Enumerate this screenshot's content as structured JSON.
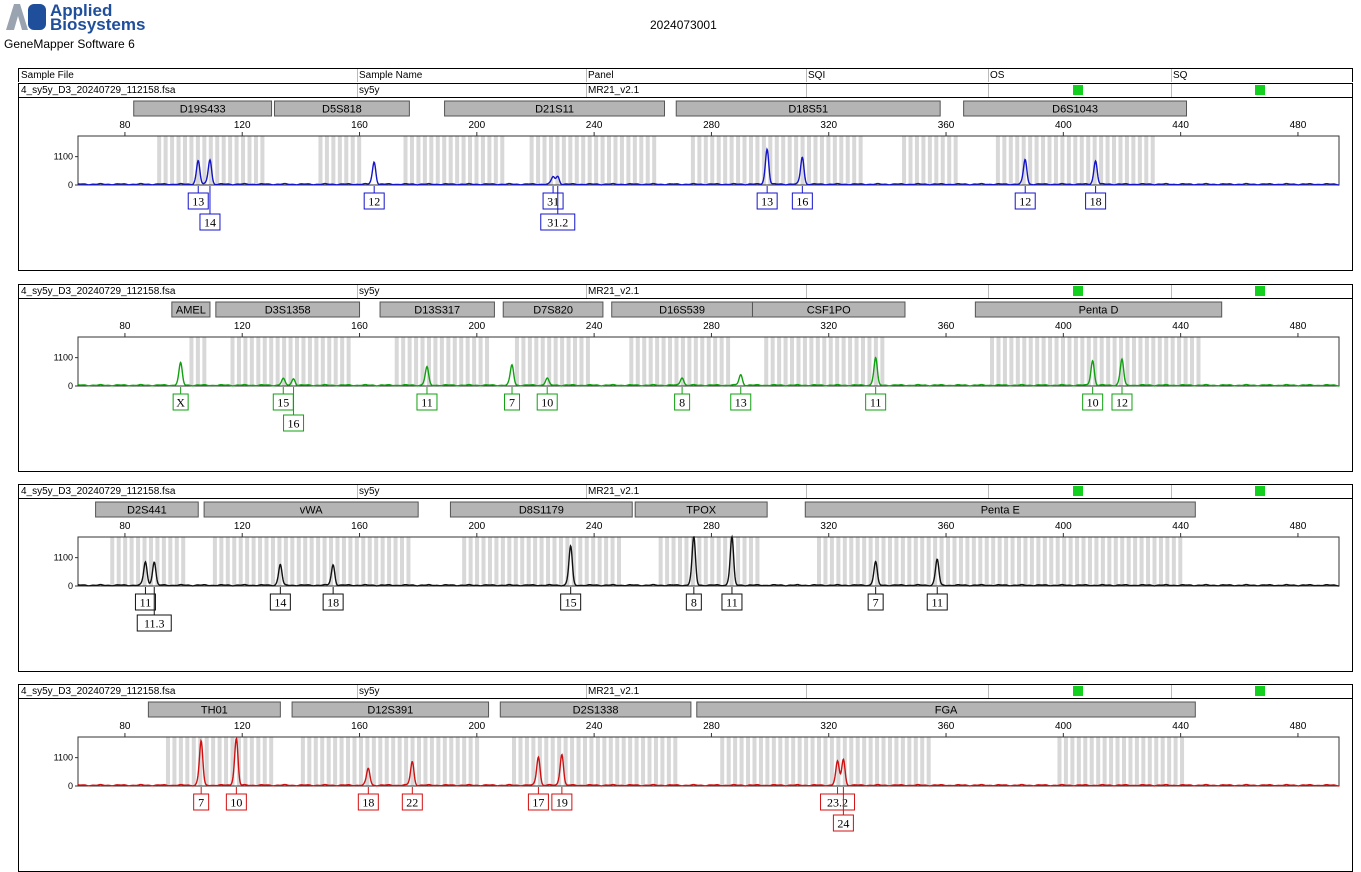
{
  "brand": {
    "name_line1": "Applied",
    "name_line2": "Biosystems",
    "software": "GeneMapper Software 6",
    "logo_colors": [
      "#9aa3b0",
      "#1f4e9b"
    ]
  },
  "report_title": "2024073001",
  "header": {
    "sample_file": "Sample File",
    "sample_name": "Sample Name",
    "panel": "Panel",
    "sqi": "SQI",
    "os": "OS",
    "sq": "SQ"
  },
  "x_ticks": [
    80,
    120,
    160,
    200,
    240,
    280,
    320,
    360,
    400,
    440,
    480
  ],
  "y_ticks": [
    0,
    1100
  ],
  "chart_data": [
    {
      "type": "line",
      "sample_file": "4_sy5y_D3_20240729_112158.fsa",
      "sample_name": "sy5y",
      "panel": "MR21_v2.1",
      "color": "#1414c8",
      "xlim": [
        64,
        494
      ],
      "ylim": [
        0,
        1900
      ],
      "loci": [
        {
          "name": "D19S433",
          "start": 83,
          "end": 130
        },
        {
          "name": "D5S818",
          "start": 131,
          "end": 177
        },
        {
          "name": "D21S11",
          "start": 189,
          "end": 264
        },
        {
          "name": "D18S51",
          "start": 268,
          "end": 358
        },
        {
          "name": "D6S1043",
          "start": 366,
          "end": 442
        }
      ],
      "bins": [
        [
          91,
          128
        ],
        [
          146,
          160
        ],
        [
          175,
          210
        ],
        [
          218,
          260
        ],
        [
          273,
          332
        ],
        [
          345,
          364
        ],
        [
          377,
          430
        ]
      ],
      "peaks": [
        {
          "x": 105,
          "y": 900,
          "label": "13",
          "row": 1
        },
        {
          "x": 109,
          "y": 950,
          "label": "14",
          "row": 2
        },
        {
          "x": 165,
          "y": 850,
          "label": "12",
          "row": 1
        },
        {
          "x": 226,
          "y": 280,
          "label": "31",
          "row": 1
        },
        {
          "x": 227.6,
          "y": 300,
          "label": "31.2",
          "row": 2
        },
        {
          "x": 299,
          "y": 1350,
          "label": "13",
          "row": 1
        },
        {
          "x": 311,
          "y": 1050,
          "label": "16",
          "row": 1
        },
        {
          "x": 387,
          "y": 950,
          "label": "12",
          "row": 1
        },
        {
          "x": 411,
          "y": 900,
          "label": "18",
          "row": 1
        }
      ]
    },
    {
      "type": "line",
      "sample_file": "4_sy5y_D3_20240729_112158.fsa",
      "sample_name": "sy5y",
      "panel": "MR21_v2.1",
      "color": "#10a010",
      "xlim": [
        64,
        494
      ],
      "ylim": [
        0,
        1900
      ],
      "loci": [
        {
          "name": "AMEL",
          "start": 96,
          "end": 109
        },
        {
          "name": "D3S1358",
          "start": 111,
          "end": 160
        },
        {
          "name": "D13S317",
          "start": 167,
          "end": 206
        },
        {
          "name": "D7S820",
          "start": 209,
          "end": 243
        },
        {
          "name": "D16S539",
          "start": 246,
          "end": 294
        },
        {
          "name": "CSF1PO",
          "start": 294,
          "end": 346
        },
        {
          "name": "Penta D",
          "start": 370,
          "end": 454
        }
      ],
      "bins": [
        [
          102,
          108
        ],
        [
          116,
          156
        ],
        [
          172,
          203
        ],
        [
          213,
          238
        ],
        [
          252,
          287
        ],
        [
          298,
          339
        ],
        [
          375,
          446
        ]
      ],
      "peaks": [
        {
          "x": 99,
          "y": 850,
          "label": "X",
          "row": 1
        },
        {
          "x": 134,
          "y": 250,
          "label": "15",
          "row": 1
        },
        {
          "x": 137.5,
          "y": 250,
          "label": "16",
          "row": 2
        },
        {
          "x": 183,
          "y": 700,
          "label": "11",
          "row": 1
        },
        {
          "x": 212,
          "y": 780,
          "label": "7",
          "row": 1
        },
        {
          "x": 224,
          "y": 270,
          "label": "10",
          "row": 1
        },
        {
          "x": 270,
          "y": 300,
          "label": "8",
          "row": 1
        },
        {
          "x": 290,
          "y": 400,
          "label": "13",
          "row": 1
        },
        {
          "x": 336,
          "y": 1050,
          "label": "11",
          "row": 1
        },
        {
          "x": 410,
          "y": 950,
          "label": "10",
          "row": 1
        },
        {
          "x": 420,
          "y": 1000,
          "label": "12",
          "row": 1
        }
      ]
    },
    {
      "type": "line",
      "sample_file": "4_sy5y_D3_20240729_112158.fsa",
      "sample_name": "sy5y",
      "panel": "MR21_v2.1",
      "color": "#111111",
      "xlim": [
        64,
        494
      ],
      "ylim": [
        0,
        1900
      ],
      "loci": [
        {
          "name": "D2S441",
          "start": 70,
          "end": 105
        },
        {
          "name": "vWA",
          "start": 107,
          "end": 180
        },
        {
          "name": "D8S1179",
          "start": 191,
          "end": 253
        },
        {
          "name": "TPOX",
          "start": 254,
          "end": 299
        },
        {
          "name": "Penta E",
          "start": 312,
          "end": 445
        }
      ],
      "bins": [
        [
          75,
          100
        ],
        [
          110,
          178
        ],
        [
          195,
          248
        ],
        [
          262,
          296
        ],
        [
          316,
          440
        ]
      ],
      "peaks": [
        {
          "x": 87,
          "y": 900,
          "label": "11",
          "row": 1
        },
        {
          "x": 90,
          "y": 900,
          "label": "11.3",
          "row": 2
        },
        {
          "x": 133,
          "y": 800,
          "label": "14",
          "row": 1
        },
        {
          "x": 151,
          "y": 780,
          "label": "18",
          "row": 1
        },
        {
          "x": 232,
          "y": 1500,
          "label": "15",
          "row": 1
        },
        {
          "x": 274,
          "y": 1850,
          "label": "8",
          "row": 1
        },
        {
          "x": 287,
          "y": 1850,
          "label": "11",
          "row": 1
        },
        {
          "x": 336,
          "y": 900,
          "label": "7",
          "row": 1
        },
        {
          "x": 357,
          "y": 1000,
          "label": "11",
          "row": 1
        }
      ]
    },
    {
      "type": "line",
      "sample_file": "4_sy5y_D3_20240729_112158.fsa",
      "sample_name": "sy5y",
      "panel": "MR21_v2.1",
      "color": "#d01010",
      "xlim": [
        64,
        494
      ],
      "ylim": [
        0,
        1900
      ],
      "loci": [
        {
          "name": "TH01",
          "start": 88,
          "end": 133
        },
        {
          "name": "D12S391",
          "start": 137,
          "end": 204
        },
        {
          "name": "D2S1338",
          "start": 208,
          "end": 273
        },
        {
          "name": "FGA",
          "start": 275,
          "end": 445
        }
      ],
      "bins": [
        [
          94,
          130
        ],
        [
          140,
          200
        ],
        [
          212,
          268
        ],
        [
          283,
          355
        ],
        [
          398,
          440
        ]
      ],
      "peaks": [
        {
          "x": 106,
          "y": 1700,
          "label": "7",
          "row": 1
        },
        {
          "x": 118,
          "y": 1800,
          "label": "10",
          "row": 1
        },
        {
          "x": 163,
          "y": 650,
          "label": "18",
          "row": 1
        },
        {
          "x": 178,
          "y": 900,
          "label": "22",
          "row": 1
        },
        {
          "x": 221,
          "y": 1100,
          "label": "17",
          "row": 1
        },
        {
          "x": 229,
          "y": 1200,
          "label": "19",
          "row": 1
        },
        {
          "x": 323,
          "y": 900,
          "label": "23.2",
          "row": 1
        },
        {
          "x": 325,
          "y": 1000,
          "label": "24",
          "row": 2
        }
      ]
    }
  ]
}
